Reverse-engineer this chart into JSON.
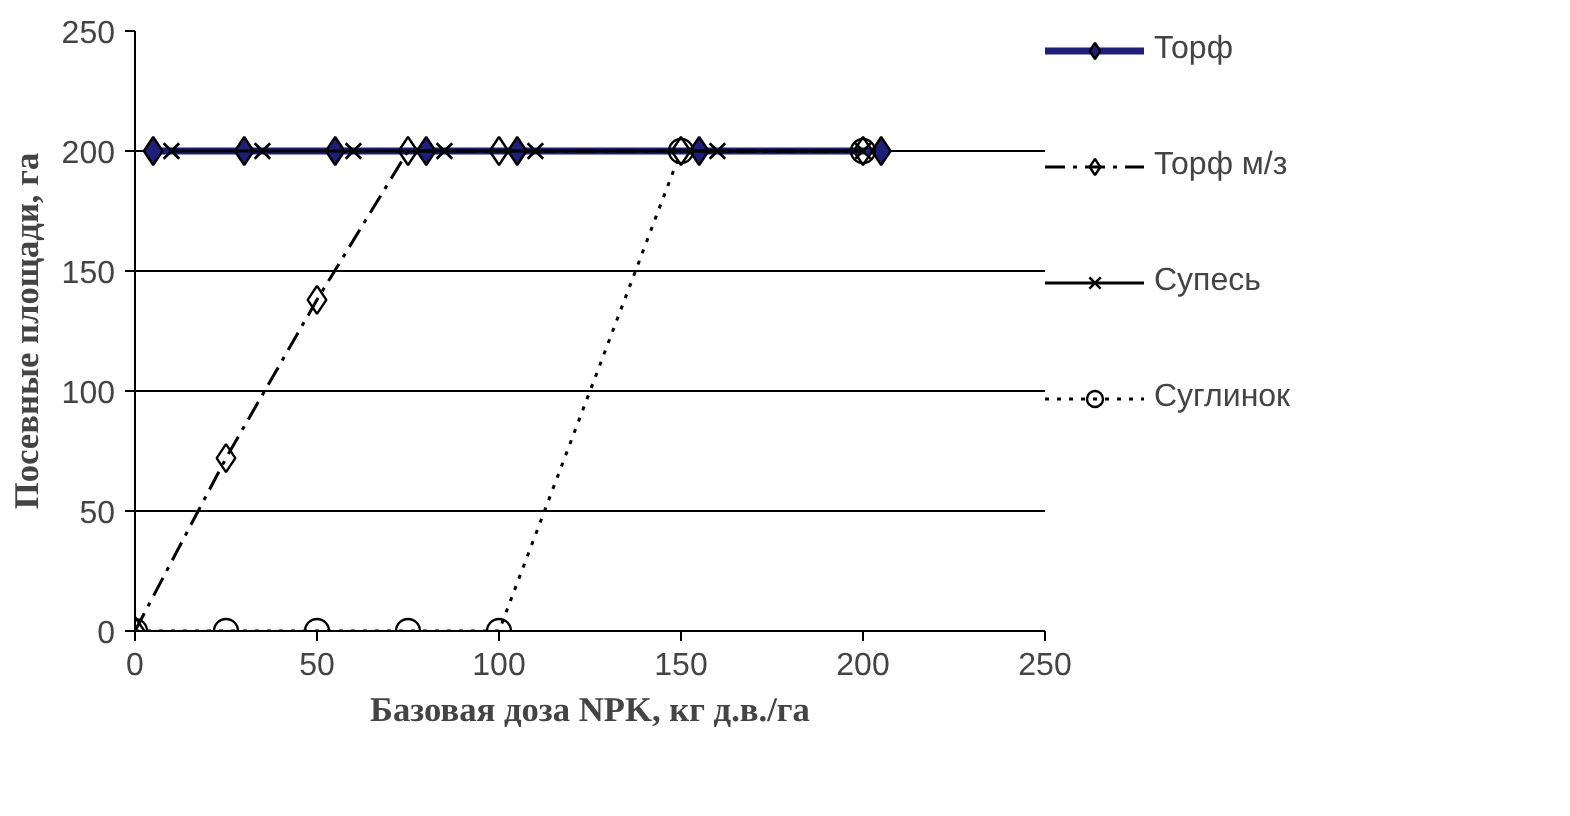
{
  "chart_data": {
    "type": "line",
    "xlabel": "Базовая доза NPK, кг д.в./га",
    "ylabel": "Посевные площади, га",
    "xlim": [
      0,
      250
    ],
    "ylim": [
      0,
      250
    ],
    "xticks": [
      0,
      50,
      100,
      150,
      200,
      250
    ],
    "yticks": [
      0,
      50,
      100,
      150,
      200,
      250
    ],
    "grid": "y",
    "legend": "right",
    "series": [
      {
        "name": "Торф",
        "color": "#1f1f7a",
        "marker": "diamond",
        "line_style": "solid",
        "x": [
          5,
          30,
          55,
          80,
          105,
          155,
          205
        ],
        "values": [
          200,
          200,
          200,
          200,
          200,
          200,
          200
        ]
      },
      {
        "name": "Торф м/з",
        "color": "#000000",
        "marker": "diamond",
        "line_style": "dashdot",
        "x": [
          0,
          25,
          50,
          75,
          100,
          150,
          200
        ],
        "values": [
          0,
          72,
          138,
          200,
          200,
          200,
          200
        ]
      },
      {
        "name": "Супесь",
        "color": "#000000",
        "marker": "cross",
        "line_style": "solid",
        "x": [
          10,
          35,
          60,
          85,
          110,
          160,
          200
        ],
        "values": [
          200,
          200,
          200,
          200,
          200,
          200,
          200
        ]
      },
      {
        "name": "Суглинок",
        "color": "#000000",
        "marker": "circle",
        "line_style": "dotted",
        "x": [
          0,
          25,
          50,
          75,
          100,
          150,
          200
        ],
        "values": [
          0,
          0,
          0,
          0,
          0,
          200,
          200
        ]
      }
    ]
  }
}
